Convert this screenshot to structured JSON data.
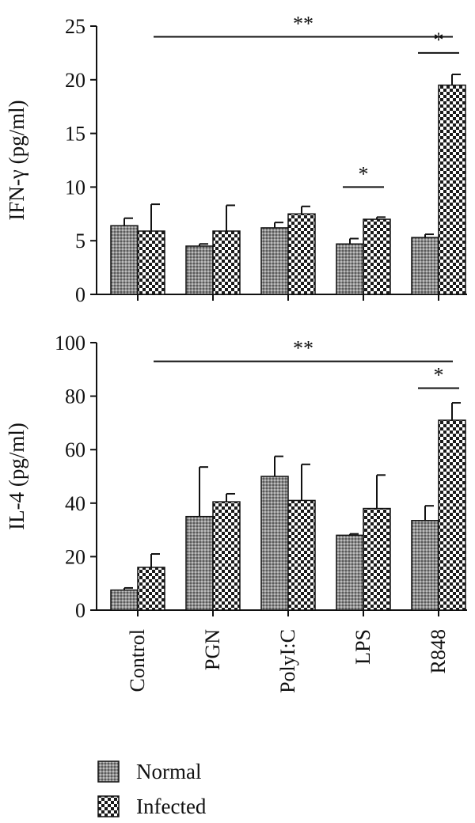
{
  "colors": {
    "axis": "#111111",
    "normal_fill": "#8c8c8c",
    "infected_fill": "#ffffff",
    "pattern_ink": "#1a1a1a"
  },
  "legend": {
    "items": [
      {
        "label": "Normal",
        "pattern": "dot-gray"
      },
      {
        "label": "Infected",
        "pattern": "checker"
      }
    ]
  },
  "chart_data": [
    {
      "type": "bar",
      "id": "ifn",
      "ylabel": "IFN-γ (pg/ml)",
      "ylim": [
        0,
        25
      ],
      "yticks": [
        0,
        5,
        10,
        15,
        20,
        25
      ],
      "categories": [
        "Control",
        "PGN",
        "PolyI:C",
        "LPS",
        "R848"
      ],
      "series": [
        {
          "name": "Normal",
          "values": [
            6.4,
            4.5,
            6.2,
            4.7,
            5.3
          ],
          "errors": [
            0.7,
            0.2,
            0.5,
            0.5,
            0.3
          ]
        },
        {
          "name": "Infected",
          "values": [
            5.9,
            5.9,
            7.5,
            7.0,
            19.5
          ],
          "errors": [
            2.5,
            2.4,
            0.7,
            0.2,
            1.0
          ]
        }
      ],
      "annotations": [
        {
          "text": "**",
          "from": 0,
          "to": 4,
          "level": 24
        },
        {
          "text": "*",
          "from": 3.0,
          "to": 3.45,
          "level": 10,
          "short": true
        },
        {
          "text": "*",
          "from": 4.0,
          "to": 4.45,
          "level": 22.5,
          "short": true
        }
      ],
      "show_xlabels": false
    },
    {
      "type": "bar",
      "id": "il4",
      "ylabel": "IL-4 (pg/ml)",
      "ylim": [
        0,
        100
      ],
      "yticks": [
        0,
        20,
        40,
        60,
        80,
        100
      ],
      "categories": [
        "Control",
        "PGN",
        "PolyI:C",
        "LPS",
        "R848"
      ],
      "series": [
        {
          "name": "Normal",
          "values": [
            7.5,
            35,
            50,
            28,
            33.5
          ],
          "errors": [
            0.8,
            18.5,
            7.5,
            0.5,
            5.5
          ]
        },
        {
          "name": "Infected",
          "values": [
            16,
            40.5,
            41,
            38,
            71
          ],
          "errors": [
            5,
            3,
            13.5,
            12.5,
            6.5
          ]
        }
      ],
      "annotations": [
        {
          "text": "**",
          "from": 0,
          "to": 4,
          "level": 93
        },
        {
          "text": "*",
          "from": 4.0,
          "to": 4.45,
          "level": 83,
          "short": true
        }
      ],
      "show_xlabels": true
    }
  ]
}
